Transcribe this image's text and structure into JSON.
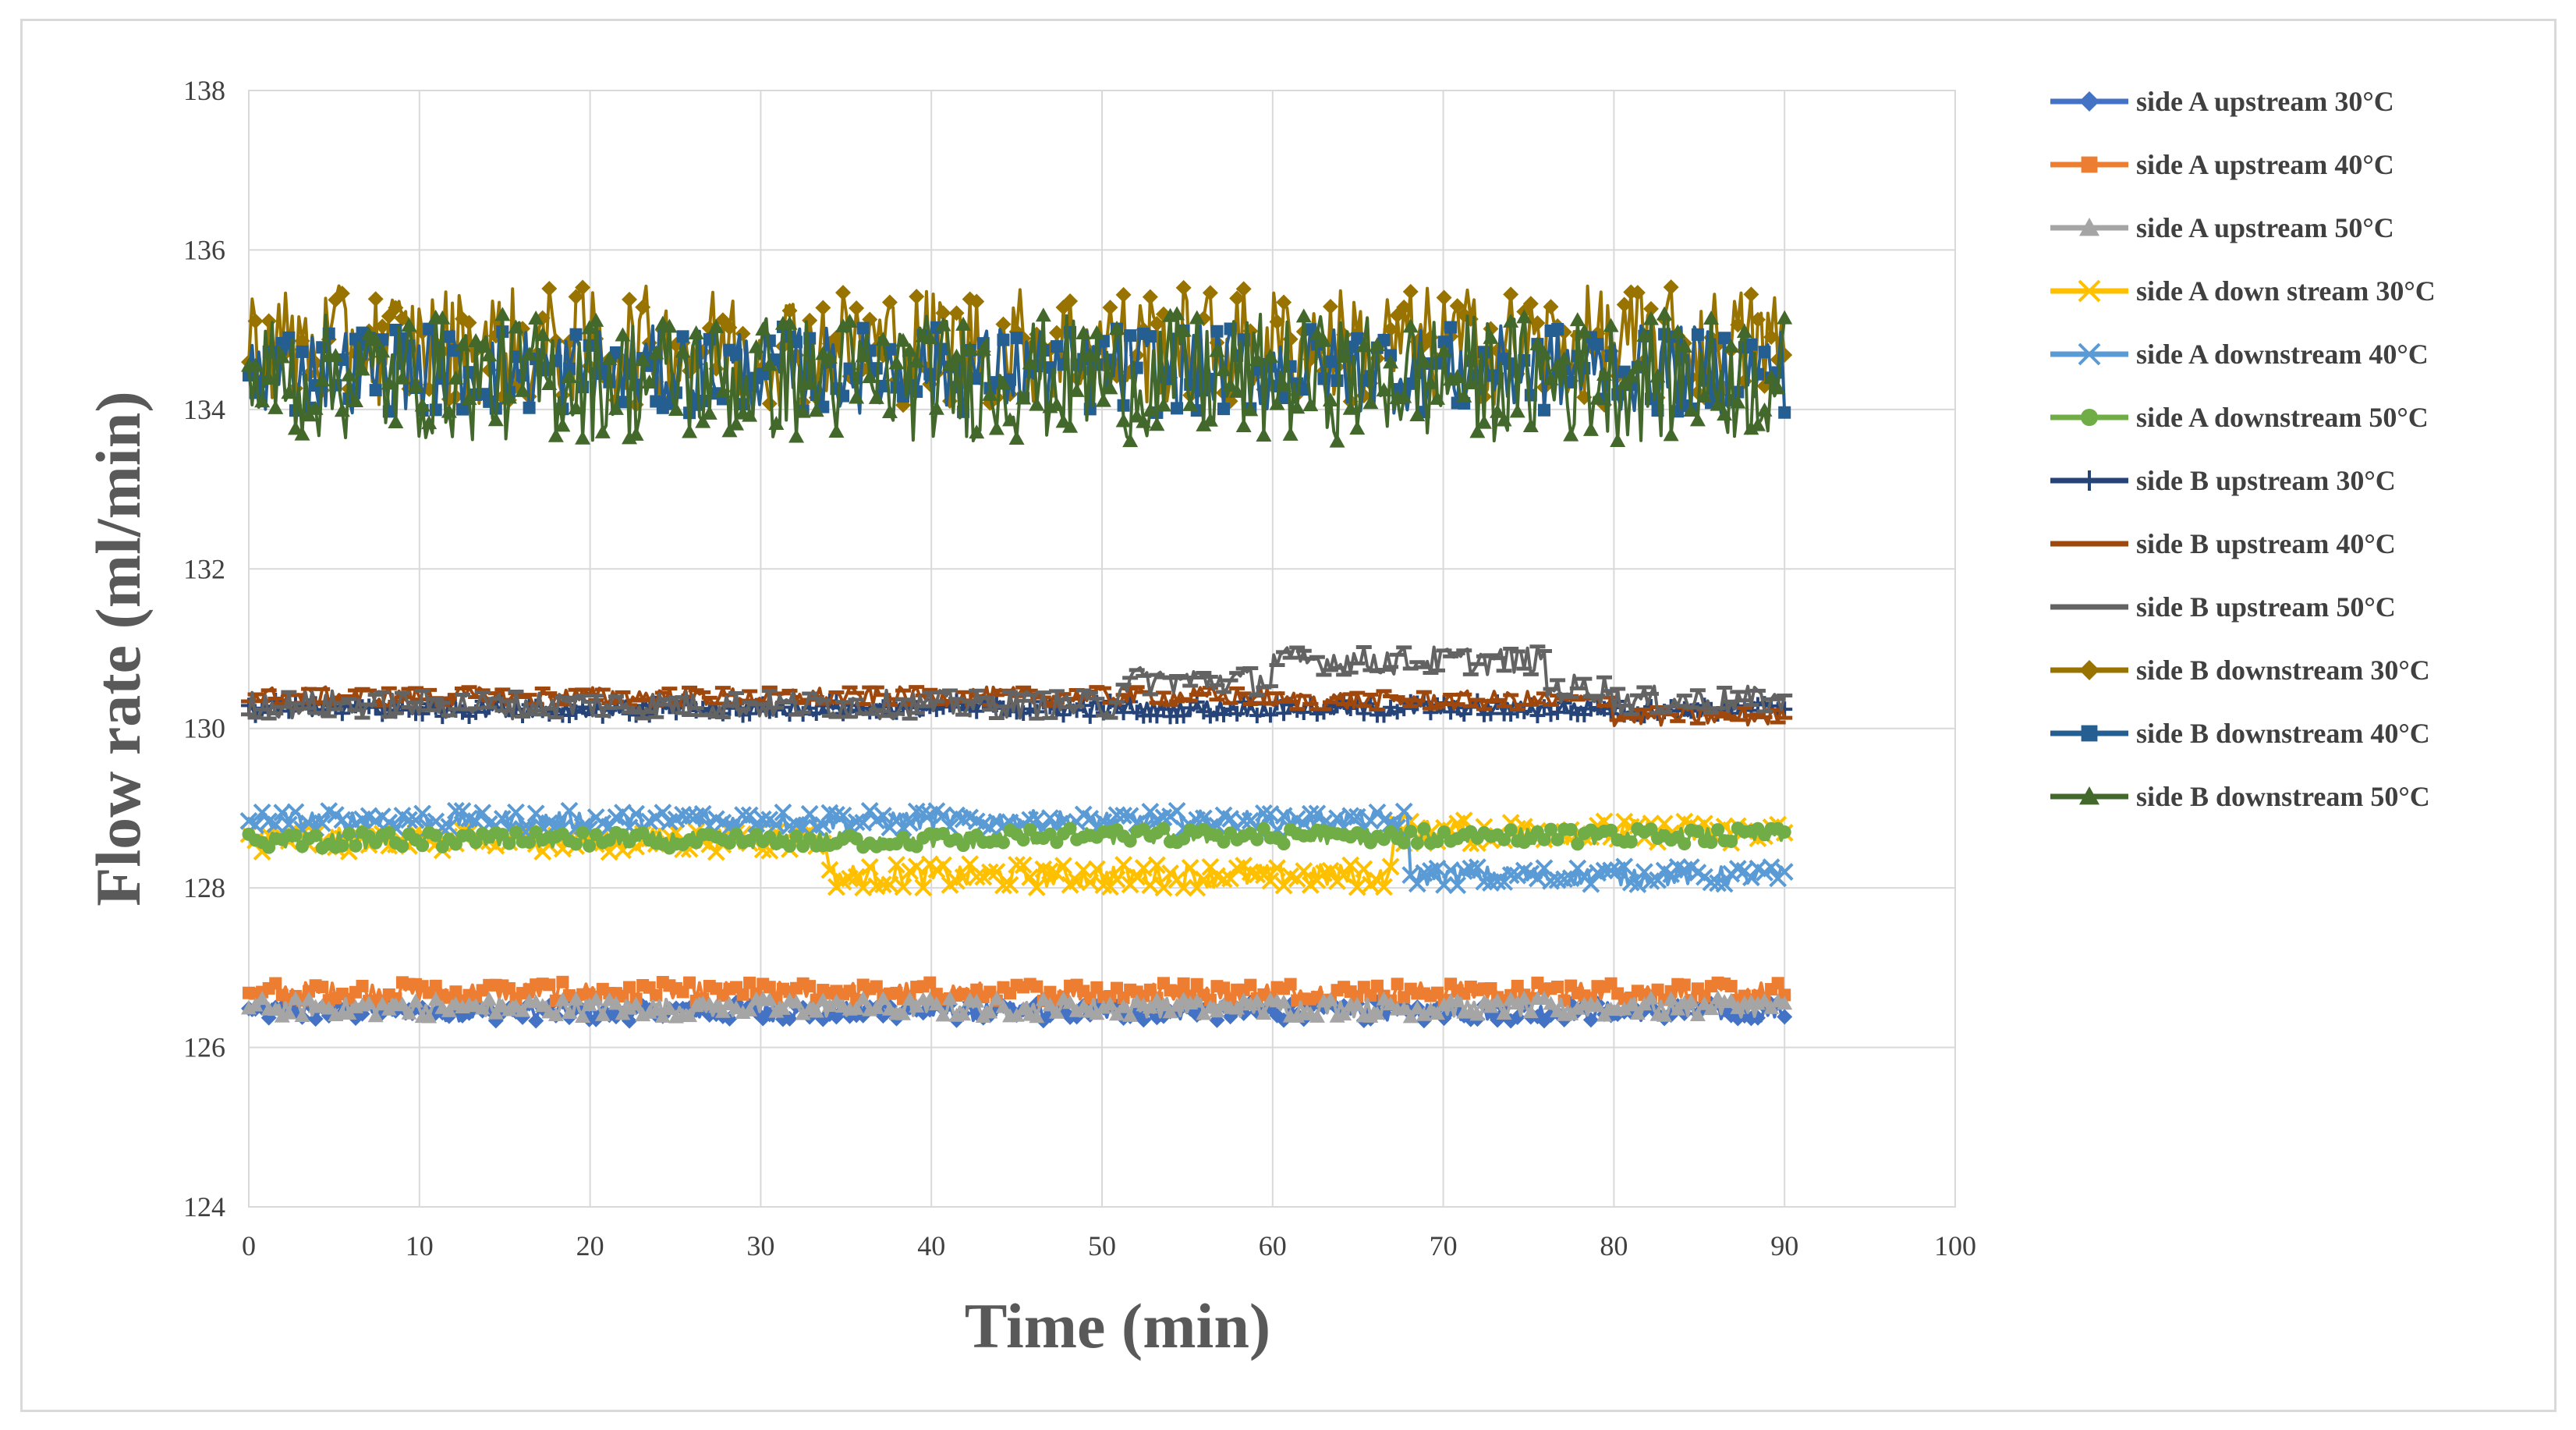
{
  "chart_data": {
    "type": "line",
    "title": "",
    "xlabel": "Time (min)",
    "ylabel": "Flow rate (ml/min)",
    "xlim": [
      0,
      100
    ],
    "ylim": [
      124,
      138
    ],
    "xticks": [
      0,
      10,
      20,
      30,
      40,
      50,
      60,
      70,
      80,
      90,
      100
    ],
    "yticks": [
      124,
      126,
      128,
      130,
      132,
      134,
      136,
      138
    ],
    "grid": true,
    "legend_position": "right",
    "series": [
      {
        "name": "side A upstream 30°C",
        "color": "#4472c4",
        "marker": "diamond",
        "x": [
          0,
          90
        ],
        "segments": [
          [
            0,
            90,
            126.45
          ]
        ],
        "noise": 0.12
      },
      {
        "name": "side A upstream 40°C",
        "color": "#ed7d31",
        "marker": "square",
        "x": [
          0,
          90
        ],
        "segments": [
          [
            0,
            90,
            126.7
          ]
        ],
        "noise": 0.12
      },
      {
        "name": "side A upstream 50°C",
        "color": "#a5a5a5",
        "marker": "triangle",
        "x": [
          0,
          90
        ],
        "segments": [
          [
            0,
            90,
            126.5
          ]
        ],
        "noise": 0.12
      },
      {
        "name": "side A down stream 30°C",
        "color": "#ffc000",
        "marker": "x",
        "x": [
          0,
          90
        ],
        "segments": [
          [
            0,
            34,
            128.6
          ],
          [
            34,
            67,
            128.15
          ],
          [
            67,
            90,
            128.7
          ]
        ],
        "noise": 0.15
      },
      {
        "name": "side A downstream 40°C",
        "color": "#5b9bd5",
        "marker": "x",
        "x": [
          0,
          90
        ],
        "segments": [
          [
            0,
            68,
            128.85
          ],
          [
            68,
            90,
            128.15
          ]
        ],
        "noise": 0.12
      },
      {
        "name": "side A downstream 50°C",
        "color": "#70ad47",
        "marker": "circle",
        "x": [
          0,
          90
        ],
        "segments": [
          [
            0,
            44,
            128.6
          ],
          [
            44,
            90,
            128.65
          ]
        ],
        "noise": 0.1
      },
      {
        "name": "side B upstream 30°C",
        "color": "#264478",
        "marker": "plus",
        "x": [
          0,
          90
        ],
        "segments": [
          [
            0,
            90,
            130.25
          ]
        ],
        "noise": 0.1
      },
      {
        "name": "side B upstream 40°C",
        "color": "#9e480e",
        "marker": "dash",
        "x": [
          0,
          90
        ],
        "segments": [
          [
            0,
            60,
            130.4
          ],
          [
            60,
            80,
            130.35
          ],
          [
            80,
            90,
            130.15
          ]
        ],
        "noise": 0.12
      },
      {
        "name": "side B upstream 50°C",
        "color": "#636363",
        "marker": "dash",
        "x": [
          0,
          90
        ],
        "segments": [
          [
            0,
            51,
            130.3
          ],
          [
            51,
            60,
            130.6
          ],
          [
            60,
            76,
            130.85
          ],
          [
            76,
            80,
            130.5
          ],
          [
            80,
            90,
            130.35
          ]
        ],
        "noise": 0.18
      },
      {
        "name": "side B downstream 30°C",
        "color": "#997300",
        "marker": "diamond",
        "x": [
          0,
          90
        ],
        "segments": [
          [
            0,
            90,
            134.8
          ]
        ],
        "noise": 0.75
      },
      {
        "name": "side B downstream 40°C",
        "color": "#255e91",
        "marker": "square",
        "x": [
          0,
          90
        ],
        "segments": [
          [
            0,
            90,
            134.5
          ]
        ],
        "noise": 0.55
      },
      {
        "name": "side B downstream 50°C",
        "color": "#43682b",
        "marker": "triangle",
        "x": [
          0,
          90
        ],
        "segments": [
          [
            0,
            90,
            134.4
          ]
        ],
        "noise": 0.8
      }
    ]
  }
}
